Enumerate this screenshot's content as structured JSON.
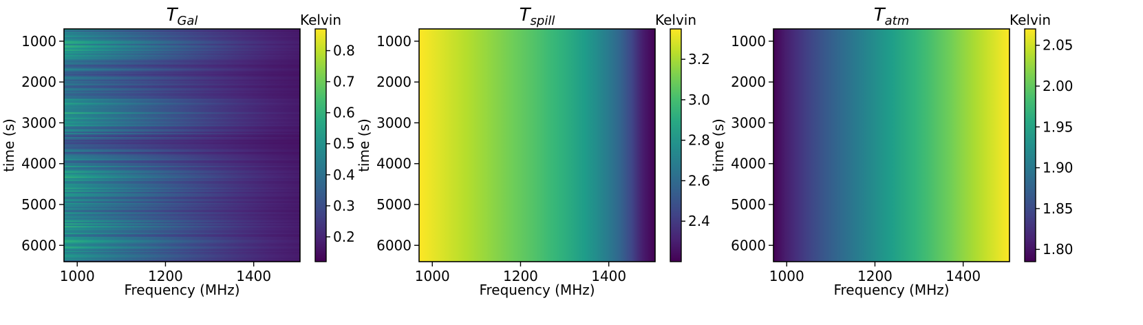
{
  "chart_data": [
    {
      "type": "heatmap",
      "title": {
        "base": "T",
        "sub": "Gal"
      },
      "xlabel": "Frequency (MHz)",
      "ylabel": "time (s)",
      "xlim": [
        970,
        1505
      ],
      "ylim": [
        6400,
        700
      ],
      "xticks": [
        1000,
        1200,
        1400
      ],
      "yticks": [
        1000,
        2000,
        3000,
        4000,
        5000,
        6000
      ],
      "colorbar": {
        "label": "Kelvin",
        "range": [
          0.12,
          0.87
        ],
        "ticks": [
          "0.2",
          "0.3",
          "0.4",
          "0.5",
          "0.6",
          "0.7",
          "0.8"
        ]
      },
      "pattern": "galactic"
    },
    {
      "type": "heatmap",
      "title": {
        "base": "T",
        "sub": "spill"
      },
      "xlabel": "Frequency (MHz)",
      "ylabel": "time (s)",
      "xlim": [
        970,
        1505
      ],
      "ylim": [
        6400,
        700
      ],
      "xticks": [
        1000,
        1200,
        1400
      ],
      "yticks": [
        1000,
        2000,
        3000,
        4000,
        5000,
        6000
      ],
      "colorbar": {
        "label": "Kelvin",
        "range": [
          2.2,
          3.35
        ],
        "ticks": [
          "2.4",
          "2.6",
          "2.8",
          "3.0",
          "3.2"
        ]
      },
      "pattern": "spill"
    },
    {
      "type": "heatmap",
      "title": {
        "base": "T",
        "sub": "atm"
      },
      "xlabel": "Frequency (MHz)",
      "ylabel": "time (s)",
      "xlim": [
        970,
        1505
      ],
      "ylim": [
        6400,
        700
      ],
      "xticks": [
        1000,
        1200,
        1400
      ],
      "yticks": [
        1000,
        2000,
        3000,
        4000,
        5000,
        6000
      ],
      "colorbar": {
        "label": "Kelvin",
        "range": [
          1.785,
          2.07
        ],
        "ticks": [
          "1.80",
          "1.85",
          "1.90",
          "1.95",
          "2.00",
          "2.05"
        ]
      },
      "pattern": "atm"
    }
  ]
}
